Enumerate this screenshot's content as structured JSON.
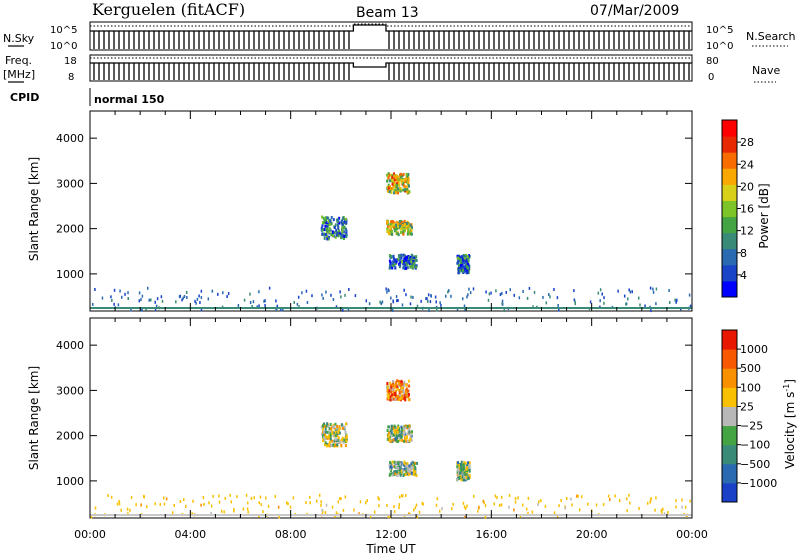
{
  "header": {
    "title": "Kerguelen (fitACF)",
    "beam": "Beam 13",
    "date": "07/Mar/2009"
  },
  "params": {
    "nsky_label": "N.Sky",
    "nsky_ticks": [
      "10^5",
      "10^0"
    ],
    "nsearch_label": "N.Search",
    "nsearch_ticks": [
      "10^5",
      "10^0"
    ],
    "freq_label_line1": "Freq.",
    "freq_label_line2": "[MHz]",
    "freq_ticks": [
      "18",
      "8"
    ],
    "nave_label": "Nave",
    "nave_ticks": [
      "80",
      "0"
    ],
    "cpid_label": "CPID",
    "cpid_value": "normal 150"
  },
  "chart_data": [
    {
      "type": "heatmap",
      "name": "power",
      "ylabel": "Slant Range [km]",
      "yticks": [
        "4000",
        "3000",
        "2000",
        "1000"
      ],
      "yticks_values": [
        4000,
        3000,
        2000,
        1000
      ],
      "ylim": [
        180,
        4600
      ],
      "xlim": [
        0,
        24
      ],
      "xticks": [
        "00:00",
        "04:00",
        "08:00",
        "12:00",
        "16:00",
        "20:00",
        "00:00"
      ],
      "xlabel": "Time UT",
      "colorbar": {
        "label": "Power [dB]",
        "ticks": [
          "28",
          "24",
          "20",
          "16",
          "12",
          "8",
          "4"
        ],
        "colors": [
          "#0000ff",
          "#1a44c8",
          "#2a6ab0",
          "#3a8a78",
          "#44a444",
          "#7cc428",
          "#d8d018",
          "#f8a800",
          "#f86c00",
          "#e82800",
          "#ff0000"
        ]
      },
      "patches": [
        {
          "t0": 11.8,
          "t1": 12.7,
          "r0": 2820,
          "r1": 3250,
          "level": 0.6
        },
        {
          "t0": 11.8,
          "t1": 12.8,
          "r0": 1900,
          "r1": 2200,
          "level": 0.55
        },
        {
          "t0": 11.9,
          "t1": 13.0,
          "r0": 1150,
          "r1": 1450,
          "level": 0.2
        },
        {
          "t0": 9.2,
          "t1": 10.2,
          "r0": 1800,
          "r1": 2300,
          "level": 0.25
        },
        {
          "t0": 14.6,
          "t1": 15.1,
          "r0": 1050,
          "r1": 1450,
          "level": 0.2
        }
      ]
    },
    {
      "type": "heatmap",
      "name": "velocity",
      "ylabel": "Slant Range [km]",
      "yticks": [
        "4000",
        "3000",
        "2000",
        "1000"
      ],
      "yticks_values": [
        4000,
        3000,
        2000,
        1000
      ],
      "ylim": [
        180,
        4600
      ],
      "xlim": [
        0,
        24
      ],
      "xticks": [
        "00:00",
        "04:00",
        "08:00",
        "12:00",
        "16:00",
        "20:00",
        "00:00"
      ],
      "xlabel": "Time UT",
      "colorbar": {
        "label": "Velocity [m s",
        "label_sup": "-1",
        "label_end": "]",
        "ticks": [
          "1000",
          "500",
          "100",
          "25",
          "−25",
          "−100",
          "−500",
          "−1000"
        ],
        "colors": [
          "#1a40c8",
          "#2a6ab0",
          "#3a8a78",
          "#44a444",
          "#b8b8b8",
          "#f8c000",
          "#f89000",
          "#f85800",
          "#e81800"
        ]
      },
      "patches": [
        {
          "t0": 11.8,
          "t1": 12.7,
          "r0": 2820,
          "r1": 3250,
          "level": 0.75
        },
        {
          "t0": 11.8,
          "t1": 12.8,
          "r0": 1900,
          "r1": 2250,
          "level": 0.45
        },
        {
          "t0": 11.9,
          "t1": 13.0,
          "r0": 1150,
          "r1": 1450,
          "level": 0.4
        },
        {
          "t0": 9.2,
          "t1": 10.2,
          "r0": 1800,
          "r1": 2300,
          "level": 0.5
        },
        {
          "t0": 14.6,
          "t1": 15.1,
          "r0": 1050,
          "r1": 1450,
          "level": 0.4
        }
      ]
    }
  ]
}
